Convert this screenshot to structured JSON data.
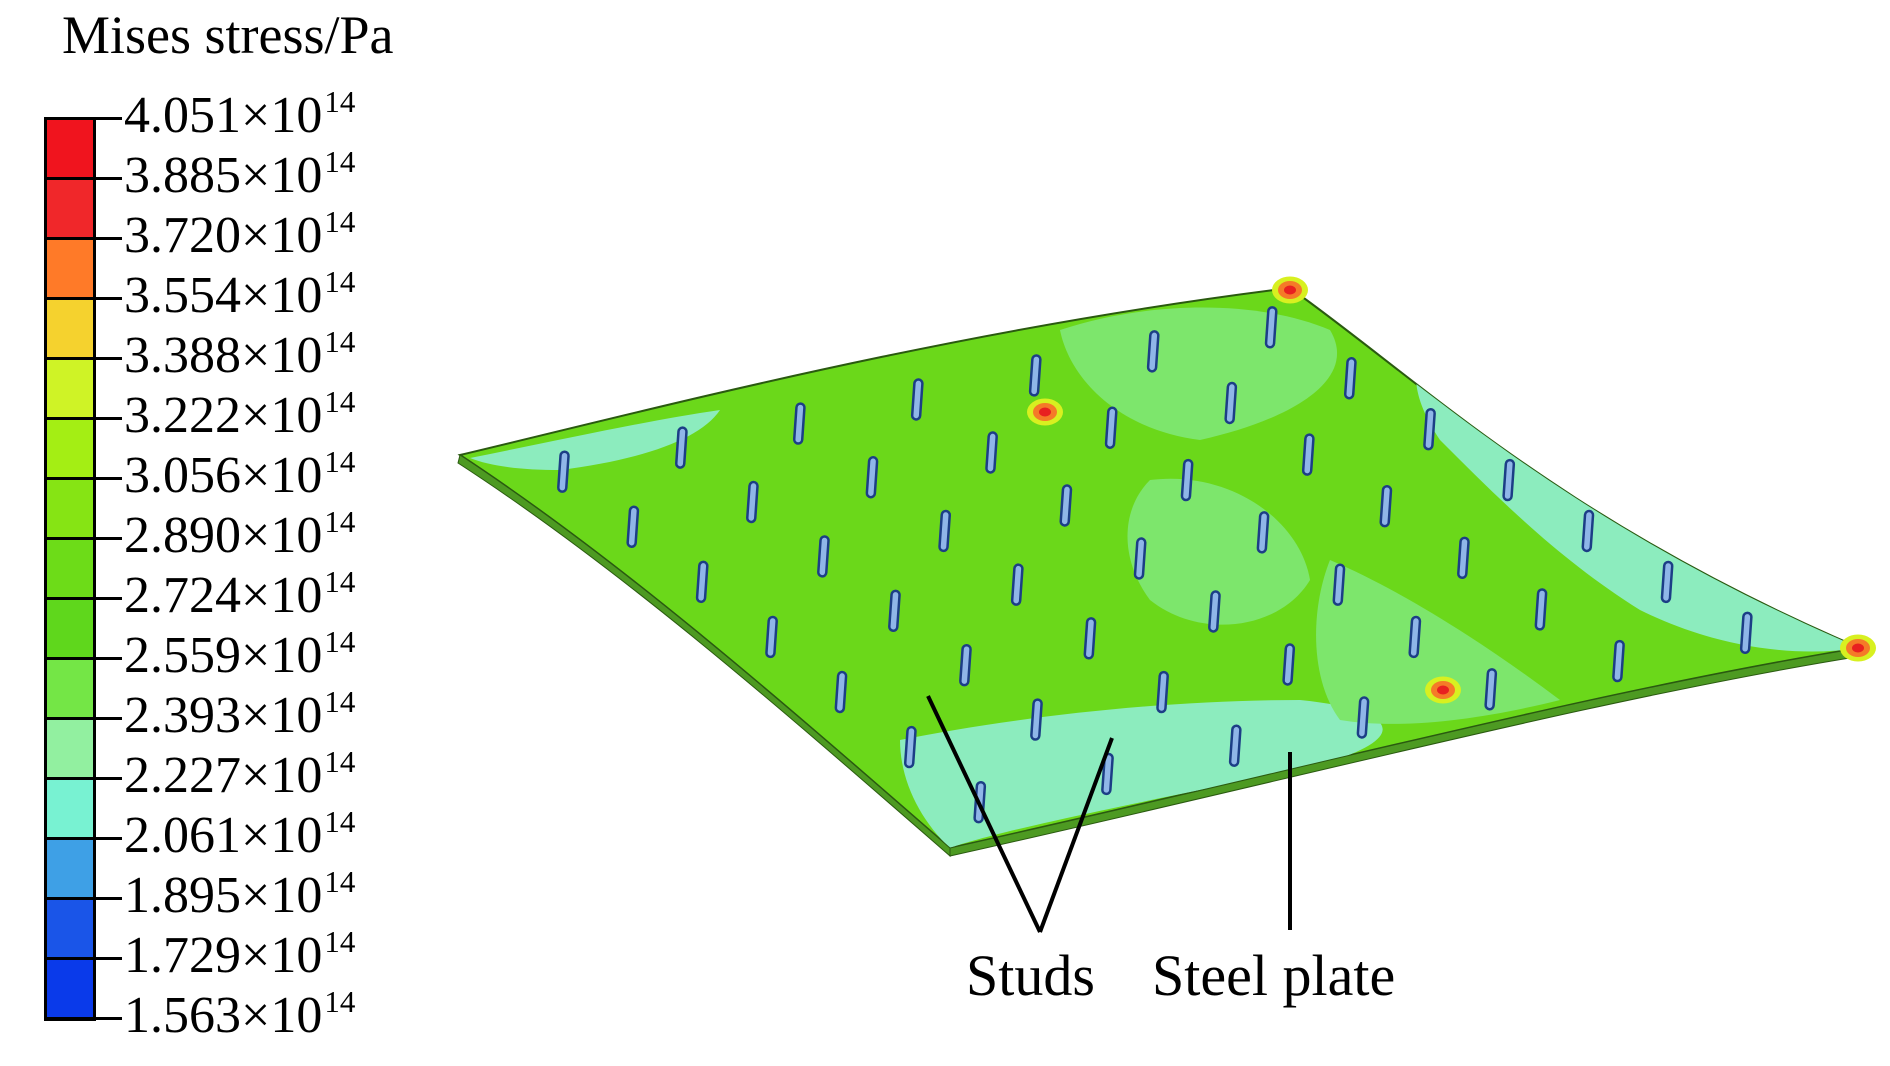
{
  "legend": {
    "title": "Mises stress/Pa",
    "ticks": [
      {
        "mantissa": "4.051",
        "base": "×10",
        "exp": "14"
      },
      {
        "mantissa": "3.885",
        "base": "×10",
        "exp": "14"
      },
      {
        "mantissa": "3.720",
        "base": "×10",
        "exp": "14"
      },
      {
        "mantissa": "3.554",
        "base": "×10",
        "exp": "14"
      },
      {
        "mantissa": "3.388",
        "base": "×10",
        "exp": "14"
      },
      {
        "mantissa": "3.222",
        "base": "×10",
        "exp": "14"
      },
      {
        "mantissa": "3.056",
        "base": "×10",
        "exp": "14"
      },
      {
        "mantissa": "2.890",
        "base": "×10",
        "exp": "14"
      },
      {
        "mantissa": "2.724",
        "base": "×10",
        "exp": "14"
      },
      {
        "mantissa": "2.559",
        "base": "×10",
        "exp": "14"
      },
      {
        "mantissa": "2.393",
        "base": "×10",
        "exp": "14"
      },
      {
        "mantissa": "2.227",
        "base": "×10",
        "exp": "14"
      },
      {
        "mantissa": "2.061",
        "base": "×10",
        "exp": "14"
      },
      {
        "mantissa": "1.895",
        "base": "×10",
        "exp": "14"
      },
      {
        "mantissa": "1.729",
        "base": "×10",
        "exp": "14"
      },
      {
        "mantissa": "1.563",
        "base": "×10",
        "exp": "14"
      }
    ],
    "band_colors": [
      "#f0141e",
      "#f0272a",
      "#ff7a28",
      "#f5d22e",
      "#cff326",
      "#a4ee14",
      "#86e414",
      "#6ddc18",
      "#5fd71c",
      "#74e646",
      "#92f0a0",
      "#78f2d2",
      "#3ea0e6",
      "#1a55e8",
      "#0a3aea"
    ]
  },
  "plate": {
    "main_color": "#6bd81a",
    "light_color": "#7de66c",
    "cool_color": "#8cecbe",
    "hot_color": "#f57a28"
  },
  "labels": {
    "studs": "Studs",
    "steel_plate": "Steel plate"
  }
}
